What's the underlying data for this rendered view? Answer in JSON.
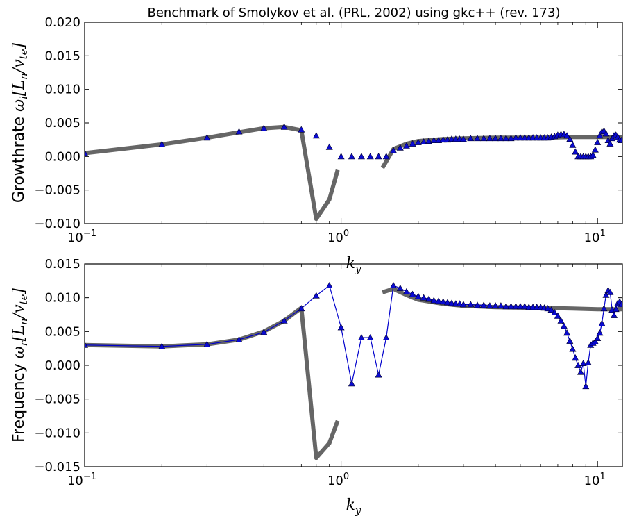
{
  "figure": {
    "title": "Benchmark of Smolykov et al. (PRL, 2002)  using gkc++ (rev. 173)"
  },
  "colors": {
    "reference_line": "#666666",
    "marker_fill": "#0a0ad0",
    "marker_edge": "#000030",
    "connector": "#0000cc",
    "axes": "#000000"
  },
  "chart_data": [
    {
      "type": "line",
      "title": "Benchmark of Smolykov et al. (PRL, 2002)  using gkc++ (rev. 173)",
      "ylabel_text": "Growthrate",
      "ylabel_math_prefix": "ω",
      "ylabel_math_sub": "i",
      "ylabel_math_rest": "[L",
      "ylabel_math_sub2": "n",
      "ylabel_math_rest2": "/v",
      "ylabel_math_sub3": "te",
      "ylabel_math_end": "]",
      "xlabel_main": "k",
      "xlabel_sub": "y",
      "x_scale": "log",
      "xlim": [
        0.1,
        12.5
      ],
      "ylim": [
        -0.01,
        0.02
      ],
      "x_tick_bases": [
        "10",
        "10",
        "10"
      ],
      "x_tick_exps": [
        "−1",
        "0",
        "1"
      ],
      "x_ticks": [
        0.1,
        1,
        10
      ],
      "y_ticks": [
        -0.01,
        -0.005,
        0.0,
        0.005,
        0.01,
        0.015,
        0.02
      ],
      "y_tick_labels": [
        "−0.010",
        "−0.005",
        "0.000",
        "0.005",
        "0.010",
        "0.015",
        "0.020"
      ],
      "connect_markers": false,
      "series": [
        {
          "kind": "reference",
          "segments": [
            [
              [
                0.1,
                0.0005
              ],
              [
                0.2,
                0.0018
              ],
              [
                0.3,
                0.0028
              ],
              [
                0.4,
                0.0036
              ],
              [
                0.5,
                0.0042
              ],
              [
                0.6,
                0.0044
              ],
              [
                0.7,
                0.0039
              ],
              [
                0.8,
                -0.0093
              ],
              [
                0.9,
                -0.0064
              ],
              [
                0.97,
                -0.002
              ]
            ],
            [
              [
                1.45,
                -0.0017
              ],
              [
                1.6,
                0.0011
              ],
              [
                1.8,
                0.0019
              ],
              [
                2.0,
                0.0023
              ],
              [
                2.5,
                0.0026
              ],
              [
                3.0,
                0.0027
              ],
              [
                4.0,
                0.0028
              ],
              [
                6.0,
                0.0028
              ],
              [
                8.0,
                0.0029
              ],
              [
                10.0,
                0.0029
              ],
              [
                12.5,
                0.0029
              ]
            ]
          ]
        },
        {
          "kind": "markers",
          "points": [
            [
              0.1,
              0.0005
            ],
            [
              0.2,
              0.0018
            ],
            [
              0.3,
              0.0028
            ],
            [
              0.4,
              0.0037
            ],
            [
              0.5,
              0.0042
            ],
            [
              0.6,
              0.0044
            ],
            [
              0.7,
              0.004
            ],
            [
              0.8,
              0.0031
            ],
            [
              0.9,
              0.0014
            ],
            [
              1.0,
              0.0
            ],
            [
              1.1,
              0.0
            ],
            [
              1.2,
              0.0
            ],
            [
              1.3,
              0.0
            ],
            [
              1.4,
              0.0
            ],
            [
              1.5,
              0.0
            ],
            [
              1.6,
              0.0009
            ],
            [
              1.7,
              0.0013
            ],
            [
              1.8,
              0.0016
            ],
            [
              1.9,
              0.0019
            ],
            [
              2.0,
              0.0021
            ],
            [
              2.1,
              0.0022
            ],
            [
              2.2,
              0.0023
            ],
            [
              2.3,
              0.0024
            ],
            [
              2.4,
              0.0024
            ],
            [
              2.5,
              0.0025
            ],
            [
              2.6,
              0.0025
            ],
            [
              2.7,
              0.0026
            ],
            [
              2.8,
              0.0026
            ],
            [
              2.9,
              0.0026
            ],
            [
              3.0,
              0.0026
            ],
            [
              3.2,
              0.0027
            ],
            [
              3.4,
              0.0027
            ],
            [
              3.6,
              0.0027
            ],
            [
              3.8,
              0.0027
            ],
            [
              4.0,
              0.0027
            ],
            [
              4.2,
              0.0027
            ],
            [
              4.4,
              0.0027
            ],
            [
              4.6,
              0.0027
            ],
            [
              4.8,
              0.0028
            ],
            [
              5.0,
              0.0028
            ],
            [
              5.2,
              0.0028
            ],
            [
              5.4,
              0.0028
            ],
            [
              5.6,
              0.0028
            ],
            [
              5.8,
              0.0028
            ],
            [
              6.0,
              0.0028
            ],
            [
              6.2,
              0.0028
            ],
            [
              6.4,
              0.0028
            ],
            [
              6.6,
              0.0029
            ],
            [
              6.8,
              0.003
            ],
            [
              7.0,
              0.0032
            ],
            [
              7.2,
              0.0033
            ],
            [
              7.4,
              0.0033
            ],
            [
              7.6,
              0.0031
            ],
            [
              7.8,
              0.0026
            ],
            [
              8.0,
              0.0017
            ],
            [
              8.2,
              0.0007
            ],
            [
              8.4,
              0.0
            ],
            [
              8.6,
              0.0
            ],
            [
              8.8,
              0.0
            ],
            [
              9.0,
              0.0
            ],
            [
              9.2,
              0.0
            ],
            [
              9.4,
              0.0
            ],
            [
              9.6,
              0.0002
            ],
            [
              9.8,
              0.001
            ],
            [
              10.0,
              0.0021
            ],
            [
              10.2,
              0.0031
            ],
            [
              10.4,
              0.0037
            ],
            [
              10.6,
              0.0038
            ],
            [
              10.8,
              0.0034
            ],
            [
              11.0,
              0.0024
            ],
            [
              11.2,
              0.0019
            ],
            [
              11.4,
              0.0027
            ],
            [
              11.6,
              0.0031
            ],
            [
              11.8,
              0.0032
            ],
            [
              12.0,
              0.0029
            ],
            [
              12.2,
              0.0025
            ],
            [
              12.4,
              0.0024
            ]
          ]
        }
      ]
    },
    {
      "type": "line",
      "ylabel_text": "Frequency",
      "ylabel_math_prefix": "ω",
      "ylabel_math_sub": "r",
      "ylabel_math_rest": "[L",
      "ylabel_math_sub2": "n",
      "ylabel_math_rest2": "/v",
      "ylabel_math_sub3": "te",
      "ylabel_math_end": "]",
      "xlabel_main": "k",
      "xlabel_sub": "y",
      "x_scale": "log",
      "xlim": [
        0.1,
        12.5
      ],
      "ylim": [
        -0.015,
        0.015
      ],
      "x_tick_bases": [
        "10",
        "10",
        "10"
      ],
      "x_tick_exps": [
        "−1",
        "0",
        "1"
      ],
      "x_ticks": [
        0.1,
        1,
        10
      ],
      "y_ticks": [
        -0.015,
        -0.01,
        -0.005,
        0.0,
        0.005,
        0.01,
        0.015
      ],
      "y_tick_labels": [
        "−0.015",
        "−0.010",
        "−0.005",
        "0.000",
        "0.005",
        "0.010",
        "0.015"
      ],
      "connect_markers": true,
      "series": [
        {
          "kind": "reference",
          "segments": [
            [
              [
                0.1,
                0.003
              ],
              [
                0.2,
                0.0028
              ],
              [
                0.3,
                0.0031
              ],
              [
                0.4,
                0.0038
              ],
              [
                0.5,
                0.005
              ],
              [
                0.6,
                0.0066
              ],
              [
                0.7,
                0.0085
              ],
              [
                0.8,
                -0.0137
              ],
              [
                0.9,
                -0.0115
              ],
              [
                0.97,
                -0.0082
              ]
            ],
            [
              [
                1.45,
                0.0108
              ],
              [
                1.6,
                0.0113
              ],
              [
                1.8,
                0.0104
              ],
              [
                2.0,
                0.0097
              ],
              [
                2.5,
                0.0091
              ],
              [
                3.0,
                0.0088
              ],
              [
                4.0,
                0.0086
              ],
              [
                6.0,
                0.0085
              ],
              [
                8.0,
                0.0084
              ],
              [
                10.0,
                0.0083
              ],
              [
                12.5,
                0.0083
              ]
            ]
          ]
        },
        {
          "kind": "markers",
          "points": [
            [
              0.1,
              0.003
            ],
            [
              0.2,
              0.0028
            ],
            [
              0.3,
              0.0031
            ],
            [
              0.4,
              0.0038
            ],
            [
              0.5,
              0.0049
            ],
            [
              0.6,
              0.0066
            ],
            [
              0.7,
              0.0084
            ],
            [
              0.8,
              0.0103
            ],
            [
              0.9,
              0.0118
            ],
            [
              1.0,
              0.0056
            ],
            [
              1.1,
              -0.0027
            ],
            [
              1.2,
              0.0041
            ],
            [
              1.3,
              0.0041
            ],
            [
              1.4,
              -0.0014
            ],
            [
              1.5,
              0.0041
            ],
            [
              1.6,
              0.0118
            ],
            [
              1.7,
              0.0114
            ],
            [
              1.8,
              0.0109
            ],
            [
              1.9,
              0.0105
            ],
            [
              2.0,
              0.0102
            ],
            [
              2.1,
              0.01
            ],
            [
              2.2,
              0.0098
            ],
            [
              2.3,
              0.0096
            ],
            [
              2.4,
              0.0095
            ],
            [
              2.5,
              0.0094
            ],
            [
              2.6,
              0.0093
            ],
            [
              2.7,
              0.0092
            ],
            [
              2.8,
              0.0091
            ],
            [
              2.9,
              0.0091
            ],
            [
              3.0,
              0.009
            ],
            [
              3.2,
              0.009
            ],
            [
              3.4,
              0.0089
            ],
            [
              3.6,
              0.0089
            ],
            [
              3.8,
              0.0088
            ],
            [
              4.0,
              0.0088
            ],
            [
              4.2,
              0.0088
            ],
            [
              4.4,
              0.0087
            ],
            [
              4.6,
              0.0087
            ],
            [
              4.8,
              0.0087
            ],
            [
              5.0,
              0.0087
            ],
            [
              5.2,
              0.0087
            ],
            [
              5.4,
              0.0086
            ],
            [
              5.6,
              0.0086
            ],
            [
              5.8,
              0.0086
            ],
            [
              6.0,
              0.0086
            ],
            [
              6.2,
              0.0085
            ],
            [
              6.4,
              0.0084
            ],
            [
              6.6,
              0.0082
            ],
            [
              6.8,
              0.0078
            ],
            [
              7.0,
              0.0073
            ],
            [
              7.2,
              0.0066
            ],
            [
              7.4,
              0.0058
            ],
            [
              7.6,
              0.0048
            ],
            [
              7.8,
              0.0036
            ],
            [
              8.0,
              0.0024
            ],
            [
              8.2,
              0.0011
            ],
            [
              8.4,
              0.0
            ],
            [
              8.6,
              -0.001
            ],
            [
              8.8,
              0.0003
            ],
            [
              9.0,
              -0.0031
            ],
            [
              9.2,
              0.0004
            ],
            [
              9.4,
              0.003
            ],
            [
              9.6,
              0.0033
            ],
            [
              9.8,
              0.0035
            ],
            [
              10.0,
              0.004
            ],
            [
              10.2,
              0.0048
            ],
            [
              10.4,
              0.0062
            ],
            [
              10.6,
              0.0084
            ],
            [
              10.8,
              0.0104
            ],
            [
              11.0,
              0.0111
            ],
            [
              11.2,
              0.0108
            ],
            [
              11.4,
              0.0082
            ],
            [
              11.6,
              0.0074
            ],
            [
              11.8,
              0.0083
            ],
            [
              12.0,
              0.0092
            ],
            [
              12.2,
              0.0094
            ],
            [
              12.4,
              0.009
            ]
          ]
        }
      ]
    }
  ]
}
